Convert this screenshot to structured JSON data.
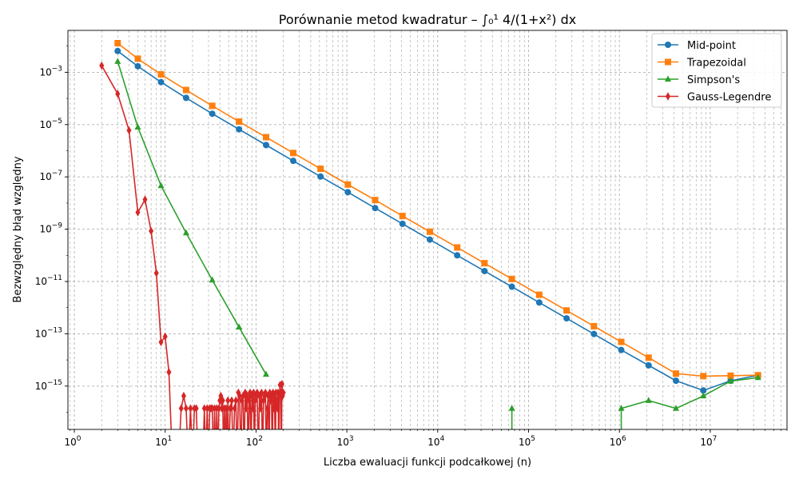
{
  "chart_data": {
    "type": "line",
    "title": "Porównanie metod kwadratur – ∫₀¹ 4/(1+x²) dx",
    "xlabel": "Liczba ewaluacji funkcji podcałkowej (n)",
    "ylabel": "Bezwzględny błąd względny",
    "x_scale": "log",
    "y_scale": "log",
    "xlim": [
      0.85,
      70000000
    ],
    "ylim": [
      2.2e-17,
      0.04
    ],
    "grid": "major and minor, dashed",
    "legend_position": "top-right",
    "x_ticks": [
      {
        "base": "10",
        "exp": "0",
        "value": 1
      },
      {
        "base": "10",
        "exp": "1",
        "value": 10
      },
      {
        "base": "10",
        "exp": "2",
        "value": 100
      },
      {
        "base": "10",
        "exp": "3",
        "value": 1000
      },
      {
        "base": "10",
        "exp": "4",
        "value": 10000
      },
      {
        "base": "10",
        "exp": "5",
        "value": 100000
      },
      {
        "base": "10",
        "exp": "6",
        "value": 1000000
      },
      {
        "base": "10",
        "exp": "7",
        "value": 10000000
      }
    ],
    "y_ticks": [
      {
        "base": "10",
        "exp": "−3",
        "value": 0.001
      },
      {
        "base": "10",
        "exp": "−5",
        "value": 1e-05
      },
      {
        "base": "10",
        "exp": "−7",
        "value": 1e-07
      },
      {
        "base": "10",
        "exp": "−9",
        "value": 1e-09
      },
      {
        "base": "10",
        "exp": "−11",
        "value": 1e-11
      },
      {
        "base": "10",
        "exp": "−13",
        "value": 1e-13
      },
      {
        "base": "10",
        "exp": "−15",
        "value": 1e-15
      }
    ],
    "series": [
      {
        "name": "Mid-point",
        "color": "#1f77b4",
        "marker": "circle",
        "x": [
          3,
          5,
          9,
          17,
          33,
          65,
          129,
          257,
          513,
          1025,
          2049,
          4097,
          8193,
          16385,
          32769,
          65537,
          131073,
          262145,
          524289,
          1048577,
          2097153,
          4194305,
          8388609,
          16777217,
          33554433
        ],
        "y": [
          0.0065,
          0.0017,
          0.00042,
          0.000105,
          2.6e-05,
          6.6e-06,
          1.65e-06,
          4.1e-07,
          1.03e-07,
          2.6e-08,
          6.4e-09,
          1.6e-09,
          4e-10,
          1e-10,
          2.5e-11,
          6.3e-12,
          1.57e-12,
          3.9e-13,
          9.8e-14,
          2.4e-14,
          6.2e-15,
          1.6e-15,
          6.8e-16,
          1.6e-15,
          2.6e-15
        ]
      },
      {
        "name": "Trapezoidal",
        "color": "#ff7f0e",
        "marker": "square",
        "x": [
          3,
          5,
          9,
          17,
          33,
          65,
          129,
          257,
          513,
          1025,
          2049,
          4097,
          8193,
          16385,
          32769,
          65537,
          131073,
          262145,
          524289,
          1048577,
          2097153,
          4194305,
          8388609,
          16777217,
          33554433
        ],
        "y": [
          0.013,
          0.0033,
          0.00083,
          0.00021,
          5.2e-05,
          1.3e-05,
          3.3e-06,
          8.2e-07,
          2.05e-07,
          5.1e-08,
          1.3e-08,
          3.2e-09,
          8e-10,
          2e-10,
          5e-11,
          1.25e-11,
          3.1e-12,
          7.8e-13,
          1.95e-13,
          4.9e-14,
          1.22e-14,
          3e-15,
          2.4e-15,
          2.5e-15,
          2.6e-15
        ]
      },
      {
        "name": "Simpson's",
        "color": "#2ca02c",
        "marker": "triangle",
        "x": [
          3,
          5,
          9,
          17,
          33,
          65,
          129,
          65537,
          1048577,
          2097153,
          4194305,
          8388609,
          16777217,
          33554433
        ],
        "y": [
          0.0026,
          8e-06,
          4.6e-08,
          7.2e-10,
          1.13e-11,
          1.8e-13,
          2.8e-15,
          1.4e-16,
          1.4e-16,
          2.8e-16,
          1.4e-16,
          4.2e-16,
          1.55e-15,
          2.1e-15
        ],
        "drop_to_zero_before_x": [
          65537,
          1048577
        ]
      },
      {
        "name": "Gauss-Legendre",
        "color": "#d62728",
        "marker": "diamond",
        "x": [
          2,
          3,
          4,
          5,
          6,
          7,
          8,
          9,
          10,
          11,
          12,
          13,
          14,
          15,
          16,
          17,
          18,
          19,
          20,
          21,
          22,
          23,
          24,
          25,
          26,
          27,
          28,
          29,
          30,
          31,
          32,
          33,
          34,
          35,
          36,
          37,
          38,
          39,
          40,
          41,
          42,
          43,
          44,
          45,
          46,
          47,
          48,
          49,
          50,
          52,
          54,
          56,
          58,
          60,
          62,
          64,
          66,
          68,
          70,
          72,
          74,
          76,
          78,
          80,
          82,
          84,
          86,
          88,
          90,
          92,
          94,
          96,
          98,
          100,
          103,
          106,
          109,
          112,
          115,
          118,
          121,
          124,
          127,
          130,
          133,
          136,
          139,
          142,
          145,
          148,
          151,
          154,
          157,
          160,
          163,
          166,
          169,
          172,
          175,
          178,
          181,
          184,
          187,
          190,
          193,
          196,
          200
        ],
        "y": [
          0.0018,
          0.00015,
          6e-06,
          4.4e-09,
          1.35e-08,
          8.5e-10,
          2.1e-11,
          4.8e-14,
          7.8e-14,
          3.4e-15,
          0,
          0,
          0,
          1.4e-16,
          4.2e-16,
          1.4e-16,
          0,
          1.4e-16,
          0,
          1.4e-16,
          1.4e-16,
          0,
          0,
          0,
          0,
          1.4e-16,
          0,
          1.4e-16,
          0,
          1.4e-16,
          1.4e-16,
          1.4e-16,
          0,
          1.4e-16,
          0,
          1.4e-16,
          0,
          1.4e-16,
          2.8e-16,
          4.2e-16,
          1.4e-16,
          2.8e-16,
          0,
          1.4e-16,
          0,
          1.4e-16,
          0,
          2.8e-16,
          0,
          1.4e-16,
          2.8e-16,
          0,
          1.4e-16,
          2.8e-16,
          0,
          5.6e-16,
          4.2e-16,
          0,
          2.8e-16,
          4.2e-16,
          0,
          5.6e-16,
          1.4e-16,
          4.2e-16,
          0,
          2.8e-16,
          5.6e-16,
          0,
          4.2e-16,
          1.4e-16,
          5.6e-16,
          0,
          2.8e-16,
          4.2e-16,
          5.6e-16,
          0,
          4.2e-16,
          1.4e-16,
          5.6e-16,
          0,
          2.8e-16,
          4.2e-16,
          5.6e-16,
          0,
          1.4e-16,
          4.2e-16,
          0,
          5.6e-16,
          2.8e-16,
          4.2e-16,
          0,
          5.6e-16,
          1.4e-16,
          4.2e-16,
          0,
          5.6e-16,
          2.8e-16,
          1.4e-16,
          5.6e-16,
          0,
          4.2e-16,
          1.1e-15,
          5.6e-16,
          0,
          1.2e-15,
          4.2e-16,
          5.6e-16
        ]
      }
    ]
  }
}
